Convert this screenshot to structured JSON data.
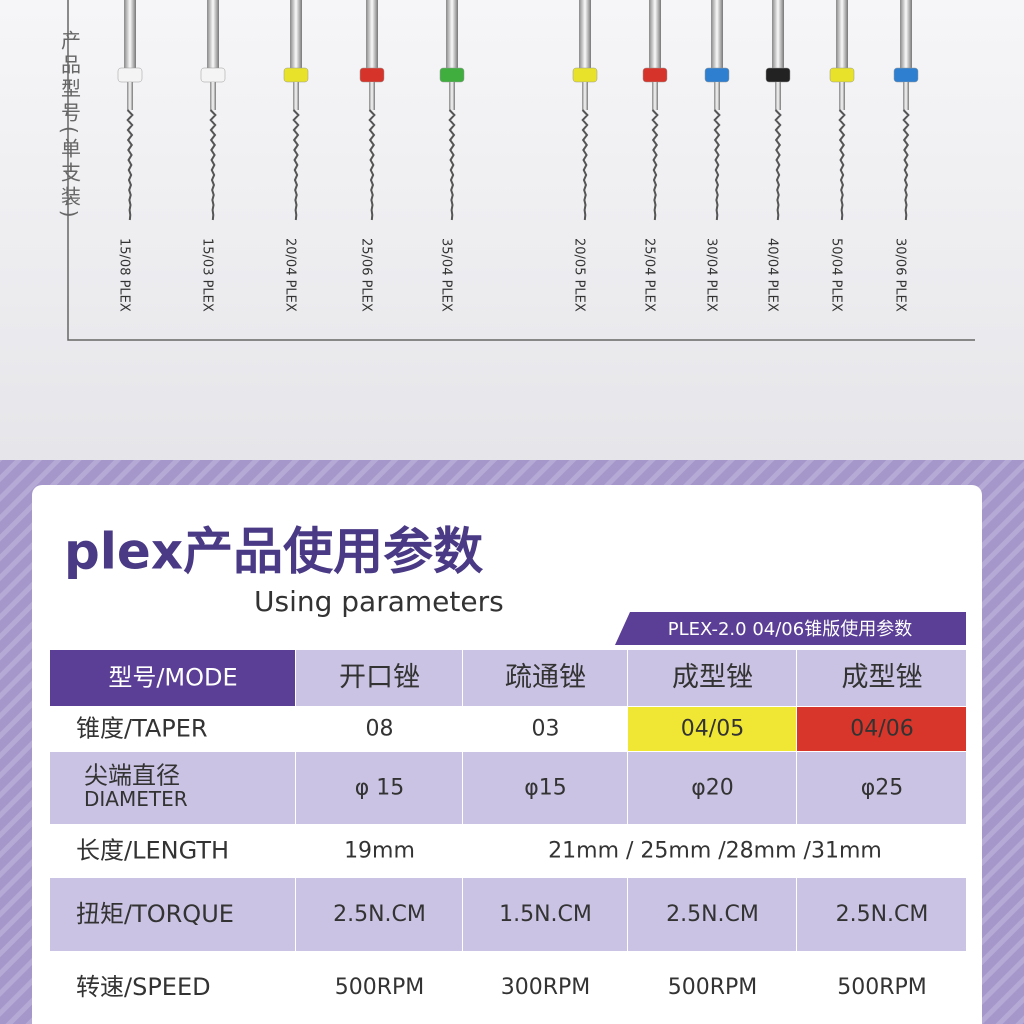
{
  "side_label": "产品型号(单支装)",
  "files": [
    {
      "label": "15/08 PLEX",
      "color": "#f4f4f4"
    },
    {
      "label": "15/03 PLEX",
      "color": "#f4f4f4"
    },
    {
      "label": "20/04 PLEX",
      "color": "#e8e22a"
    },
    {
      "label": "25/06 PLEX",
      "color": "#d6342a"
    },
    {
      "label": "35/04 PLEX",
      "color": "#3fae3f"
    },
    {
      "label": "20/05 PLEX",
      "color": "#e8e22a"
    },
    {
      "label": "25/04 PLEX",
      "color": "#d6342a"
    },
    {
      "label": "30/04 PLEX",
      "color": "#2f7fd0"
    },
    {
      "label": "40/04 PLEX",
      "color": "#222222"
    },
    {
      "label": "50/04 PLEX",
      "color": "#e8e22a"
    },
    {
      "label": "30/06 PLEX",
      "color": "#2f7fd0"
    }
  ],
  "title": "plex产品使用参数",
  "subtitle": "Using parameters",
  "badge": "PLEX-2.0 04/06锥版使用参数",
  "table": {
    "header": [
      "型号/MODE",
      "开口锉",
      "疏通锉",
      "成型锉",
      "成型锉"
    ],
    "rows": [
      {
        "label": [
          "锥度/TAPER"
        ],
        "cells": [
          "08",
          "03",
          "04/05",
          "04/06"
        ]
      },
      {
        "label": [
          "尖端直径",
          "DIAMETER"
        ],
        "cells": [
          "φ 15",
          "φ15",
          "φ20",
          "φ25"
        ]
      },
      {
        "label": [
          "长度/LENGTH"
        ],
        "cells": [
          "19mm",
          "21mm  /  25mm   /28mm   /31mm"
        ]
      },
      {
        "label": [
          "扭矩/TORQUE"
        ],
        "cells": [
          "2.5N.CM",
          "1.5N.CM",
          "2.5N.CM",
          "2.5N.CM"
        ]
      },
      {
        "label": [
          "转速/SPEED"
        ],
        "cells": [
          "500RPM",
          "300RPM",
          "500RPM",
          "500RPM"
        ]
      }
    ]
  }
}
